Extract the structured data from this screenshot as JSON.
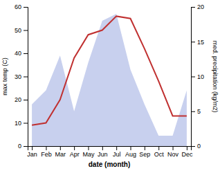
{
  "chart_data": {
    "type": "line",
    "categories": [
      "Jan",
      "Feb",
      "Mar",
      "Apr",
      "May",
      "Jun",
      "Jul",
      "Aug",
      "Sep",
      "Oct",
      "Nov",
      "Dec"
    ],
    "xlabel": "date (month)",
    "ylabel": "max temp (C)",
    "y2label": "med. precipitation (kg/m2)",
    "ylim": [
      0,
      60
    ],
    "yticks": [
      0,
      10,
      20,
      30,
      40,
      50,
      60
    ],
    "y2lim": [
      0,
      20
    ],
    "y2ticks": [
      0,
      5,
      10,
      15,
      20
    ],
    "grid": false,
    "series": [
      {
        "type": "area",
        "axis": "y2",
        "color": "#c8d0ee",
        "values": [
          6,
          8,
          13,
          5,
          12,
          18,
          19,
          11,
          6,
          1.5,
          1.5,
          8
        ]
      },
      {
        "type": "line",
        "color": "#c03030",
        "values": [
          9,
          10,
          20,
          38,
          48,
          50,
          56,
          55,
          42,
          28,
          13,
          13
        ]
      }
    ]
  }
}
